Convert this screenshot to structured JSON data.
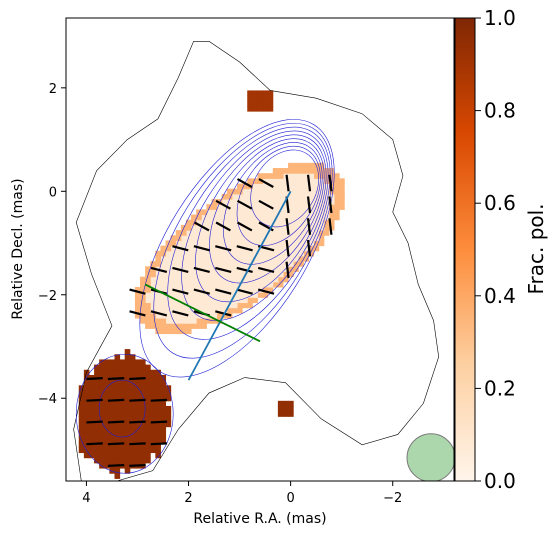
{
  "chart_data": {
    "type": "heatmap",
    "xlabel": "Relative R.A. (mas)",
    "ylabel": "Relative Decl. (mas)",
    "xlim": [
      4.4,
      -3.2
    ],
    "ylim": [
      -5.6,
      3.35
    ],
    "x_ticks": [
      4,
      2,
      0,
      -2
    ],
    "y_ticks": [
      2,
      0,
      -2,
      -4
    ],
    "x_tick_labels": [
      "4",
      "2",
      "0",
      "−2"
    ],
    "y_tick_labels": [
      "2",
      "0",
      "−2",
      "−4"
    ],
    "colorbar": {
      "label": "Frac. pol.",
      "range": [
        0.0,
        1.0
      ],
      "ticks": [
        0.0,
        0.2,
        0.4,
        0.6,
        0.8,
        1.0
      ],
      "tick_labels": [
        "0.0",
        "0.2",
        "0.4",
        "0.6",
        "0.8",
        "1.0"
      ],
      "colormap": "Oranges",
      "colors": [
        "#fff5eb",
        "#fdd0a2",
        "#fd8d3c",
        "#d94801",
        "#7f2704"
      ]
    },
    "contours": {
      "outer_color": "#000000",
      "inner_color": "#1f1fd6",
      "core": [
        0.0,
        0.2
      ],
      "outer_levels": 1,
      "inner_levels": 9
    },
    "lines": [
      {
        "color": "#1f77b4",
        "x": [
          2.0,
          0.0
        ],
        "y": [
          -3.65,
          0.0
        ]
      },
      {
        "color": "#008000",
        "x": [
          2.85,
          0.6
        ],
        "y": [
          -1.8,
          -2.9
        ]
      }
    ],
    "beam": {
      "center": [
        -2.75,
        -5.15
      ],
      "radius": 0.47,
      "color": "#90c890"
    },
    "polarization_fill": [
      {
        "region": "jet",
        "value": 0.08
      },
      {
        "region": "jet-edge",
        "value": 0.35
      },
      {
        "region": "south-east-patch",
        "value": 0.95
      },
      {
        "region": "north-knot",
        "value": 0.9
      }
    ]
  }
}
